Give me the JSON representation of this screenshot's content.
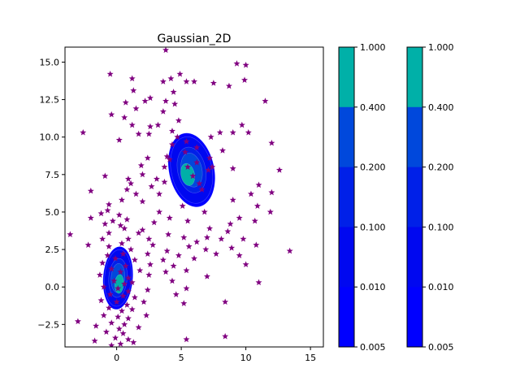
{
  "chart_data": [
    {
      "type": "contour",
      "title": "Gaussian_2D",
      "xlim": [
        -4,
        16
      ],
      "ylim": [
        -4,
        16
      ],
      "xticks": [
        0,
        5,
        10,
        15
      ],
      "xtick_labels": [
        "0",
        "5",
        "10",
        "15"
      ],
      "yticks": [
        -2.5,
        0.0,
        2.5,
        5.0,
        7.5,
        10.0,
        12.5,
        15.0
      ],
      "ytick_labels": [
        "−2.5",
        "0.0",
        "2.5",
        "5.0",
        "7.5",
        "10.0",
        "12.5",
        "15.0"
      ],
      "grid": false,
      "contour_levels": [
        0.005,
        0.01,
        0.1,
        0.2,
        0.4,
        1.0
      ],
      "contour_colors": [
        "#0000ff",
        "#0000ff",
        "#0008f0",
        "#0020e8",
        "#0048dc",
        "#00b0a8"
      ],
      "blobs": [
        {
          "center": [
            5.8,
            7.8
          ],
          "sx": 1.75,
          "sy": 2.5,
          "rot": -12,
          "peak_center": [
            5.5,
            7.5
          ]
        },
        {
          "center": [
            0.1,
            0.6
          ],
          "sx": 1.15,
          "sy": 2.1,
          "rot": 4,
          "peak_center": [
            0.2,
            0.2
          ]
        }
      ],
      "scatter": {
        "marker": "star",
        "color": "#800080",
        "points": [
          [
            3.8,
            15.8
          ],
          [
            9.3,
            14.9
          ],
          [
            10.0,
            14.8
          ],
          [
            4.9,
            14.2
          ],
          [
            -0.5,
            14.2
          ],
          [
            1.2,
            13.9
          ],
          [
            3.6,
            13.7
          ],
          [
            4.2,
            13.9
          ],
          [
            5.4,
            13.7
          ],
          [
            6.0,
            13.7
          ],
          [
            7.5,
            13.6
          ],
          [
            9.9,
            13.8
          ],
          [
            8.7,
            13.4
          ],
          [
            1.3,
            13.1
          ],
          [
            4.4,
            13.0
          ],
          [
            2.6,
            12.6
          ],
          [
            3.8,
            12.4
          ],
          [
            0.7,
            12.3
          ],
          [
            2.2,
            12.4
          ],
          [
            4.5,
            12.2
          ],
          [
            11.5,
            12.4
          ],
          [
            1.5,
            11.9
          ],
          [
            3.6,
            11.7
          ],
          [
            -0.4,
            11.5
          ],
          [
            0.6,
            11.3
          ],
          [
            4.8,
            11.1
          ],
          [
            1.2,
            10.8
          ],
          [
            2.6,
            10.7
          ],
          [
            3.2,
            10.8
          ],
          [
            4.3,
            10.4
          ],
          [
            9.7,
            10.8
          ],
          [
            1.7,
            10.2
          ],
          [
            2.5,
            10.2
          ],
          [
            -2.6,
            10.3
          ],
          [
            8.0,
            10.3
          ],
          [
            9.0,
            10.3
          ],
          [
            10.2,
            10.3
          ],
          [
            4.7,
            10.0
          ],
          [
            7.3,
            10.0
          ],
          [
            0.2,
            9.8
          ],
          [
            5.4,
            9.7
          ],
          [
            4.3,
            9.5
          ],
          [
            6.2,
            9.3
          ],
          [
            8.2,
            9.1
          ],
          [
            5.3,
            9.0
          ],
          [
            12.0,
            9.6
          ],
          [
            2.4,
            8.6
          ],
          [
            3.9,
            8.7
          ],
          [
            7.2,
            8.6
          ],
          [
            4.1,
            8.5
          ],
          [
            6.2,
            8.3
          ],
          [
            7.4,
            8.0
          ],
          [
            1.9,
            8.1
          ],
          [
            3.7,
            8.0
          ],
          [
            5.5,
            8.0
          ],
          [
            7.1,
            7.8
          ],
          [
            9.0,
            7.9
          ],
          [
            12.6,
            7.8
          ],
          [
            2.0,
            7.5
          ],
          [
            3.1,
            7.2
          ],
          [
            0.9,
            7.2
          ],
          [
            -0.9,
            7.4
          ],
          [
            5.9,
            7.4
          ],
          [
            3.7,
            7.0
          ],
          [
            1.1,
            6.9
          ],
          [
            2.7,
            6.7
          ],
          [
            6.4,
            6.9
          ],
          [
            11.0,
            6.8
          ],
          [
            0.8,
            6.5
          ],
          [
            -2.0,
            6.4
          ],
          [
            1.5,
            6.2
          ],
          [
            3.3,
            6.2
          ],
          [
            6.6,
            6.5
          ],
          [
            10.4,
            6.2
          ],
          [
            12.0,
            6.3
          ],
          [
            0.4,
            5.8
          ],
          [
            -0.6,
            5.5
          ],
          [
            2.0,
            5.7
          ],
          [
            9.0,
            5.8
          ],
          [
            5.1,
            5.4
          ],
          [
            10.9,
            5.4
          ],
          [
            -0.7,
            5.1
          ],
          [
            -1.2,
            4.9
          ],
          [
            0.2,
            4.8
          ],
          [
            3.3,
            5.0
          ],
          [
            6.8,
            5.0
          ],
          [
            11.9,
            5.0
          ],
          [
            -2.0,
            4.6
          ],
          [
            -0.3,
            4.4
          ],
          [
            0.8,
            4.5
          ],
          [
            4.1,
            4.6
          ],
          [
            9.5,
            4.6
          ],
          [
            -0.9,
            4.2
          ],
          [
            0.3,
            4.1
          ],
          [
            2.9,
            4.3
          ],
          [
            5.5,
            4.4
          ],
          [
            8.8,
            4.2
          ],
          [
            10.7,
            4.4
          ],
          [
            0.6,
            3.9
          ],
          [
            2.0,
            3.8
          ],
          [
            7.2,
            3.9
          ],
          [
            -0.6,
            3.6
          ],
          [
            1.7,
            3.6
          ],
          [
            4.0,
            3.5
          ],
          [
            8.6,
            3.7
          ],
          [
            -3.6,
            3.5
          ],
          [
            -1.1,
            3.2
          ],
          [
            0.9,
            3.2
          ],
          [
            2.5,
            3.2
          ],
          [
            5.2,
            3.3
          ],
          [
            7.0,
            3.3
          ],
          [
            8.1,
            3.2
          ],
          [
            9.8,
            3.2
          ],
          [
            6.2,
            3.0
          ],
          [
            -2.2,
            2.8
          ],
          [
            -0.6,
            2.7
          ],
          [
            0.4,
            2.9
          ],
          [
            2.8,
            2.8
          ],
          [
            5.6,
            2.7
          ],
          [
            8.9,
            2.6
          ],
          [
            10.8,
            2.8
          ],
          [
            1.1,
            2.5
          ],
          [
            3.9,
            2.4
          ],
          [
            6.9,
            2.5
          ],
          [
            13.4,
            2.4
          ],
          [
            -0.7,
            2.1
          ],
          [
            0.5,
            2.2
          ],
          [
            2.4,
            2.2
          ],
          [
            4.8,
            2.1
          ],
          [
            7.7,
            2.2
          ],
          [
            9.5,
            2.1
          ],
          [
            -0.1,
            1.9
          ],
          [
            1.4,
            1.8
          ],
          [
            3.6,
            1.8
          ],
          [
            6.0,
            1.9
          ],
          [
            -1.1,
            1.6
          ],
          [
            0.7,
            1.4
          ],
          [
            2.6,
            1.5
          ],
          [
            4.4,
            1.4
          ],
          [
            10.0,
            1.5
          ],
          [
            -0.4,
            1.2
          ],
          [
            0.3,
            1.0
          ],
          [
            1.8,
            1.1
          ],
          [
            3.8,
            1.0
          ],
          [
            5.4,
            1.1
          ],
          [
            -1.3,
            0.8
          ],
          [
            0.9,
            0.6
          ],
          [
            2.5,
            0.8
          ],
          [
            7.0,
            0.7
          ],
          [
            -0.2,
            0.4
          ],
          [
            0.6,
            0.2
          ],
          [
            1.2,
            0.3
          ],
          [
            4.3,
            0.4
          ],
          [
            11.0,
            0.3
          ],
          [
            -1.0,
            0.0
          ],
          [
            0.1,
            -0.1
          ],
          [
            0.9,
            -0.3
          ],
          [
            2.4,
            -0.2
          ],
          [
            5.4,
            -0.1
          ],
          [
            -0.5,
            -0.5
          ],
          [
            0.5,
            -0.6
          ],
          [
            1.4,
            -0.7
          ],
          [
            4.6,
            -0.5
          ],
          [
            -1.2,
            -0.9
          ],
          [
            0.0,
            -1.0
          ],
          [
            0.8,
            -1.2
          ],
          [
            2.1,
            -1.0
          ],
          [
            5.2,
            -1.1
          ],
          [
            8.4,
            -1.0
          ],
          [
            -0.6,
            -1.4
          ],
          [
            0.4,
            -1.6
          ],
          [
            1.2,
            -1.5
          ],
          [
            -1.0,
            -1.9
          ],
          [
            0.1,
            -2.0
          ],
          [
            0.9,
            -2.1
          ],
          [
            2.3,
            -1.9
          ],
          [
            -0.4,
            -2.4
          ],
          [
            0.6,
            -2.5
          ],
          [
            -3.0,
            -2.3
          ],
          [
            -1.6,
            -2.6
          ],
          [
            0.2,
            -2.8
          ],
          [
            1.7,
            -2.7
          ],
          [
            -0.8,
            -3.0
          ],
          [
            0.5,
            -3.1
          ],
          [
            -0.1,
            -3.4
          ],
          [
            0.9,
            -3.5
          ],
          [
            8.4,
            -3.3
          ],
          [
            -1.7,
            -3.6
          ],
          [
            0.3,
            -3.8
          ],
          [
            1.3,
            -3.7
          ],
          [
            -0.4,
            -3.9
          ],
          [
            5.4,
            -3.5
          ]
        ]
      }
    },
    {
      "type": "colorbar",
      "tick_labels": [
        "1.000",
        "0.400",
        "0.200",
        "0.100",
        "0.010",
        "0.005"
      ],
      "colors": [
        "#00b0a8",
        "#0048dc",
        "#0020e8",
        "#0008f0",
        "#0000ff"
      ]
    },
    {
      "type": "colorbar",
      "tick_labels": [
        "1.000",
        "0.400",
        "0.200",
        "0.100",
        "0.010",
        "0.005"
      ],
      "colors": [
        "#00b0a8",
        "#0048dc",
        "#0020e8",
        "#0008f0",
        "#0000ff"
      ]
    }
  ]
}
